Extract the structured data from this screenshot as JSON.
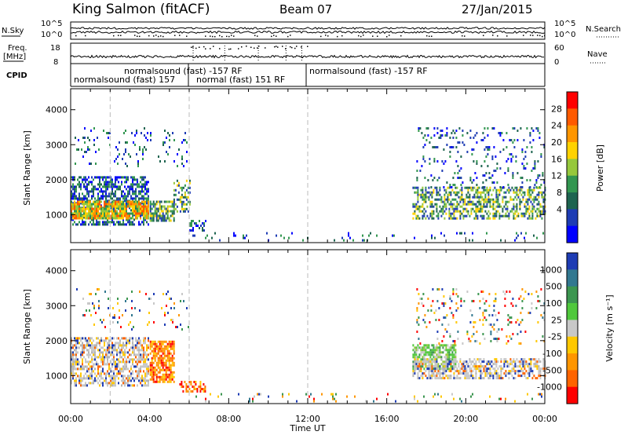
{
  "header": {
    "station": "King Salmon (fitACF)",
    "beam": "Beam 07",
    "date": "27/Jan/2015"
  },
  "status": {
    "nsky_label": "N.Sky",
    "nsearch_label": "N.Search",
    "nsky_ticks": [
      "10^5",
      "10^0"
    ],
    "nsearch_ticks": [
      "10^5",
      "10^0"
    ],
    "freq_label": "Freq.",
    "freq_unit": "[MHz]",
    "freq_ticks": [
      "18",
      "8"
    ],
    "nave_label": "Nave",
    "nave_ticks": [
      "60",
      "0"
    ],
    "cpid_label": "CPID",
    "cpid_segments": [
      {
        "text": "normalsound (fast) -157 RF",
        "row": 1
      },
      {
        "text": "normalsound (fast) 157",
        "row": 2
      },
      {
        "text": "normal (fast) 151 RF",
        "row": 2
      },
      {
        "text": "normalsound (fast) -157 RF",
        "row": 1
      }
    ]
  },
  "chart_data": [
    {
      "type": "heatmap",
      "panel": "power",
      "ylabel": "Slant Range [km]",
      "ylim": [
        200,
        4600
      ],
      "yticks": [
        "4000",
        "3000",
        "2000",
        "1000"
      ],
      "xlim_hours": [
        0,
        24
      ],
      "colorbar_label": "Power [dB]",
      "colorbar_ticks": [
        "28",
        "24",
        "20",
        "16",
        "12",
        "8",
        "4"
      ],
      "colorbar_colors": [
        "#ff0000",
        "#ff5a00",
        "#ff9600",
        "#ffd200",
        "#96c83c",
        "#329650",
        "#1e6450",
        "#1e3cb4",
        "#0000ff"
      ],
      "regions": [
        {
          "t": [
            0.0,
            3.9
          ],
          "r": [
            700,
            2100
          ],
          "level": "low",
          "density": 0.55
        },
        {
          "t": [
            0.0,
            3.9
          ],
          "r": [
            900,
            1400
          ],
          "level": "high",
          "density": 0.85
        },
        {
          "t": [
            4.0,
            5.2
          ],
          "r": [
            800,
            1400
          ],
          "level": "mid",
          "density": 0.7
        },
        {
          "t": [
            5.2,
            6.0
          ],
          "r": [
            1100,
            2000
          ],
          "level": "mid",
          "density": 0.5
        },
        {
          "t": [
            6.0,
            6.8
          ],
          "r": [
            550,
            850
          ],
          "level": "low",
          "density": 0.35
        },
        {
          "t": [
            0.2,
            6.0
          ],
          "r": [
            2400,
            3500
          ],
          "level": "low",
          "density": 0.07
        },
        {
          "t": [
            17.3,
            24.0
          ],
          "r": [
            900,
            1800
          ],
          "level": "mid",
          "density": 0.5
        },
        {
          "t": [
            17.5,
            24.0
          ],
          "r": [
            1800,
            3500
          ],
          "level": "low",
          "density": 0.12
        },
        {
          "t": [
            6.0,
            24.0
          ],
          "r": [
            250,
            500
          ],
          "level": "low",
          "density": 0.06
        }
      ]
    },
    {
      "type": "heatmap",
      "panel": "velocity",
      "ylabel": "Slant Range [km]",
      "ylim": [
        200,
        4600
      ],
      "yticks": [
        "4000",
        "3000",
        "2000",
        "1000"
      ],
      "xlim_hours": [
        0,
        24
      ],
      "xticks": [
        "00:00",
        "04:00",
        "08:00",
        "12:00",
        "16:00",
        "20:00",
        "00:00"
      ],
      "xlabel": "Time UT",
      "colorbar_label": "Velocity [m s⁻¹]",
      "colorbar_ticks": [
        "1000",
        "500",
        "100",
        "25",
        "-25",
        "-100",
        "-500",
        "-1000"
      ],
      "colorbar_colors": [
        "#1e3cb4",
        "#327890",
        "#3c9650",
        "#50c83c",
        "#c8c8c8",
        "#ffc800",
        "#ff9600",
        "#ff6400",
        "#ff0000"
      ],
      "regions": [
        {
          "t": [
            0.0,
            3.9
          ],
          "r": [
            700,
            2100
          ],
          "level": "ground",
          "density": 0.6
        },
        {
          "t": [
            4.0,
            5.2
          ],
          "r": [
            800,
            2000
          ],
          "level": "neg",
          "density": 0.75
        },
        {
          "t": [
            5.5,
            6.8
          ],
          "r": [
            550,
            850
          ],
          "level": "neg",
          "density": 0.35
        },
        {
          "t": [
            17.3,
            19.5
          ],
          "r": [
            1200,
            1900
          ],
          "level": "pos",
          "density": 0.7
        },
        {
          "t": [
            17.3,
            24.0
          ],
          "r": [
            900,
            1500
          ],
          "level": "ground",
          "density": 0.6
        },
        {
          "t": [
            17.5,
            24.0
          ],
          "r": [
            1900,
            3500
          ],
          "level": "mixed",
          "density": 0.1
        },
        {
          "t": [
            6.0,
            24.0
          ],
          "r": [
            250,
            500
          ],
          "level": "mixed",
          "density": 0.06
        },
        {
          "t": [
            0.2,
            6.0
          ],
          "r": [
            2300,
            3500
          ],
          "level": "mixed",
          "density": 0.06
        }
      ]
    }
  ]
}
